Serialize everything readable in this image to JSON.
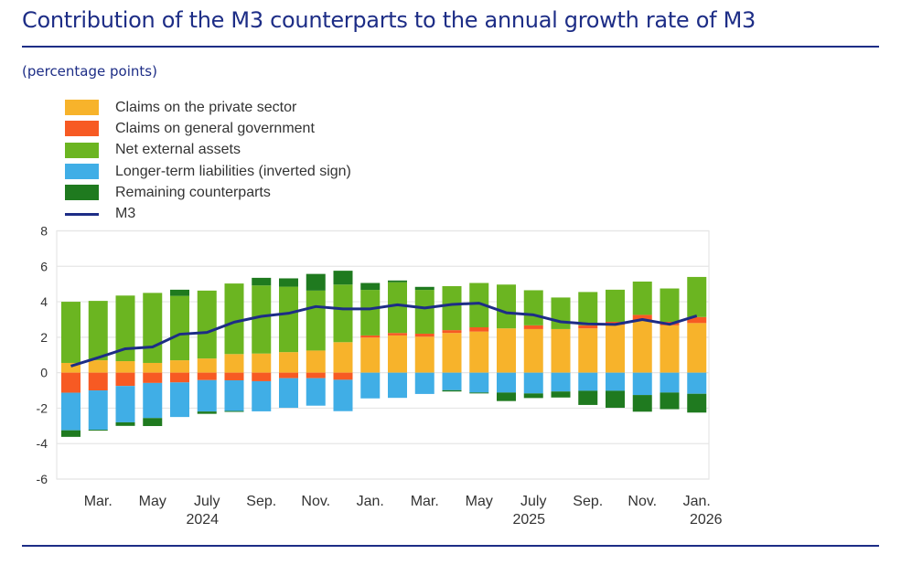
{
  "title": "Contribution of the M3 counterparts to the annual growth rate of M3",
  "units": "(percentage points)",
  "colors": {
    "title": "#1d2d86",
    "private": "#f7b32b",
    "government": "#f75a23",
    "net_external": "#6bb521",
    "longer_term": "#40aee6",
    "remaining": "#1f7a1f",
    "m3": "#1d2d86",
    "grid": "#e6e6e6"
  },
  "legend": [
    {
      "key": "private",
      "label": "Claims on the private sector",
      "kind": "swatch"
    },
    {
      "key": "government",
      "label": "Claims on general government",
      "kind": "swatch"
    },
    {
      "key": "net_external",
      "label": "Net external assets",
      "kind": "swatch"
    },
    {
      "key": "longer_term",
      "label": "Longer-term liabilities (inverted sign)",
      "kind": "swatch"
    },
    {
      "key": "remaining",
      "label": "Remaining counterparts",
      "kind": "swatch"
    },
    {
      "key": "m3",
      "label": "M3",
      "kind": "line"
    }
  ],
  "chart_data": {
    "type": "bar",
    "stacked": true,
    "title": "Contribution of the M3 counterparts to the annual growth rate of M3",
    "ylabel": "(percentage points)",
    "xlabel": "",
    "ylim": [
      -6,
      8
    ],
    "yticks": [
      8,
      6,
      4,
      2,
      0,
      -2,
      -4,
      -6
    ],
    "grid": true,
    "legend_position": "top-left",
    "categories": [
      "Feb 2024",
      "Mar 2024",
      "Apr 2024",
      "May 2024",
      "Jun 2024",
      "Jul 2024",
      "Aug 2024",
      "Sep 2024",
      "Oct 2024",
      "Nov 2024",
      "Dec 2024",
      "Jan 2025",
      "Feb 2025",
      "Mar 2025",
      "Apr 2025",
      "May 2025",
      "Jun 2025",
      "Jul 2025",
      "Aug 2025",
      "Sep 2025",
      "Oct 2025",
      "Nov 2025",
      "Dec 2025",
      "Jan 2026"
    ],
    "xtick_labels": [
      {
        "index": 1,
        "label": "Mar.",
        "year": ""
      },
      {
        "index": 3,
        "label": "May",
        "year": ""
      },
      {
        "index": 5,
        "label": "July",
        "year": "2024"
      },
      {
        "index": 7,
        "label": "Sep.",
        "year": ""
      },
      {
        "index": 9,
        "label": "Nov.",
        "year": ""
      },
      {
        "index": 11,
        "label": "Jan.",
        "year": ""
      },
      {
        "index": 13,
        "label": "Mar.",
        "year": ""
      },
      {
        "index": 15,
        "label": "May",
        "year": ""
      },
      {
        "index": 17,
        "label": "July",
        "year": "2025"
      },
      {
        "index": 19,
        "label": "Sep.",
        "year": ""
      },
      {
        "index": 21,
        "label": "Nov.",
        "year": ""
      },
      {
        "index": 23,
        "label": "Jan.",
        "year": "2026"
      }
    ],
    "series": [
      {
        "key": "private",
        "name": "Claims on the private sector",
        "type": "bar",
        "values": [
          0.55,
          0.7,
          0.65,
          0.55,
          0.7,
          0.8,
          1.05,
          1.08,
          1.16,
          1.25,
          1.72,
          1.98,
          2.1,
          2.03,
          2.24,
          2.32,
          2.5,
          2.46,
          2.46,
          2.5,
          2.7,
          2.97,
          2.67,
          2.8
        ]
      },
      {
        "key": "government",
        "name": "Claims on general government",
        "type": "bar",
        "values": [
          -1.13,
          -1.0,
          -0.75,
          -0.58,
          -0.55,
          -0.42,
          -0.43,
          -0.48,
          -0.31,
          -0.31,
          -0.4,
          0.12,
          0.14,
          0.17,
          0.16,
          0.24,
          0.0,
          0.21,
          0.0,
          0.17,
          0.17,
          0.29,
          0.2,
          0.34
        ]
      },
      {
        "key": "net_external",
        "name": "Net external assets",
        "type": "bar",
        "values": [
          3.45,
          3.35,
          3.7,
          3.95,
          3.63,
          3.83,
          3.98,
          3.84,
          3.69,
          3.38,
          3.25,
          2.57,
          2.86,
          2.47,
          2.48,
          2.5,
          2.47,
          1.98,
          1.78,
          1.88,
          1.81,
          1.88,
          1.88,
          2.26
        ]
      },
      {
        "key": "longer_term",
        "name": "Longer-term liabilities (inverted sign)",
        "type": "bar",
        "values": [
          -2.12,
          -2.22,
          -2.05,
          -1.98,
          -1.95,
          -1.77,
          -1.73,
          -1.7,
          -1.67,
          -1.55,
          -1.77,
          -1.45,
          -1.42,
          -1.2,
          -0.99,
          -1.12,
          -1.12,
          -1.17,
          -1.06,
          -1.02,
          -1.02,
          -1.26,
          -1.12,
          -1.19
        ]
      },
      {
        "key": "remaining",
        "name": "Remaining counterparts",
        "type": "bar",
        "values": [
          -0.37,
          -0.05,
          -0.2,
          -0.45,
          0.35,
          -0.13,
          -0.05,
          0.43,
          0.47,
          0.94,
          0.78,
          0.39,
          0.1,
          0.17,
          -0.07,
          -0.05,
          -0.48,
          -0.26,
          -0.34,
          -0.8,
          -0.96,
          -0.94,
          -0.94,
          -1.06
        ]
      },
      {
        "key": "m3",
        "name": "M3",
        "type": "line",
        "values": [
          0.37,
          0.85,
          1.35,
          1.45,
          2.17,
          2.27,
          2.85,
          3.18,
          3.35,
          3.73,
          3.6,
          3.6,
          3.83,
          3.65,
          3.85,
          3.92,
          3.38,
          3.26,
          2.87,
          2.75,
          2.72,
          3.0,
          2.73,
          3.21
        ]
      }
    ]
  }
}
